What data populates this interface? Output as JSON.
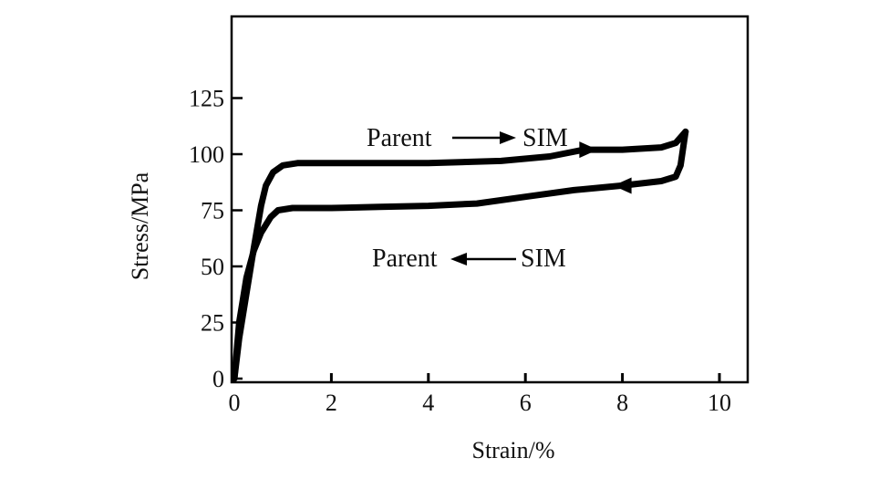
{
  "chart_data": {
    "type": "line",
    "xlabel": "Strain/%",
    "ylabel": "Stress/MPa",
    "xlim": [
      0,
      10.5
    ],
    "ylim": [
      0,
      150
    ],
    "x_ticks": [
      "0",
      "2",
      "4",
      "6",
      "8",
      "10"
    ],
    "y_ticks": [
      "0",
      "25",
      "50",
      "75",
      "100",
      "125"
    ],
    "grid": false,
    "legend": "none",
    "series": [
      {
        "role": "loading",
        "x": [
          0,
          0.1,
          0.25,
          0.4,
          0.55,
          0.65,
          0.8,
          1.0,
          1.3,
          2,
          4,
          5.5,
          6.5,
          7.2,
          8,
          8.8,
          9.1,
          9.3
        ],
        "y": [
          0,
          18,
          38,
          58,
          77,
          86,
          92,
          95,
          96,
          96,
          96,
          97,
          99,
          102,
          102,
          103,
          105,
          110
        ]
      },
      {
        "role": "unloading",
        "x": [
          9.3,
          9.2,
          9.1,
          8.8,
          8.0,
          7.0,
          6.0,
          5.0,
          4.0,
          3.0,
          2.0,
          1.2,
          0.9,
          0.75,
          0.55,
          0.4,
          0.25,
          0.1,
          0
        ],
        "y": [
          110,
          95,
          90,
          88,
          86,
          84,
          81,
          78,
          77,
          76.5,
          76,
          76,
          75,
          72,
          65,
          57,
          45,
          25,
          0
        ]
      }
    ],
    "annotations": [
      {
        "id": "forward",
        "left": "Parent",
        "right": "SIM",
        "arrow": "right"
      },
      {
        "id": "reverse",
        "left": "Parent",
        "right": "SIM",
        "arrow": "left"
      }
    ],
    "curve_color": "#000000"
  }
}
